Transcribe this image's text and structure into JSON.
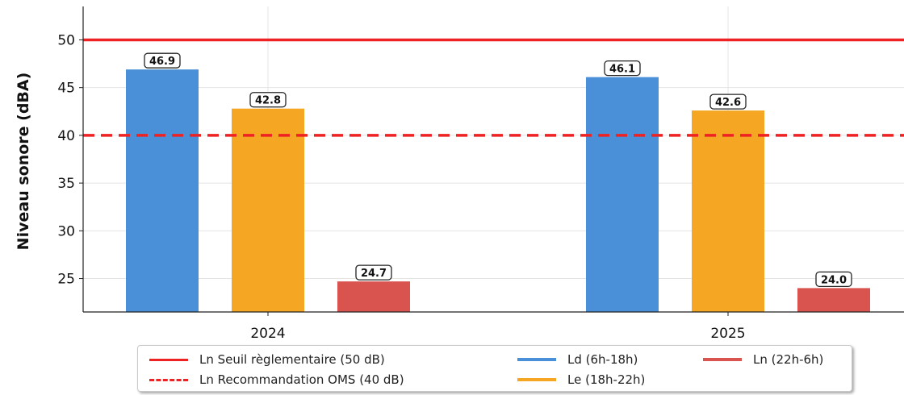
{
  "chart_data": {
    "type": "bar",
    "categories": [
      "2024",
      "2025"
    ],
    "series": [
      {
        "name": "Ld (6h-18h)",
        "values": [
          46.9,
          46.1
        ],
        "color": "#4a90d9"
      },
      {
        "name": "Le (18h-22h)",
        "values": [
          42.8,
          42.6
        ],
        "color": "#f5a623"
      },
      {
        "name": "Ln (22h-6h)",
        "values": [
          24.7,
          24.0
        ],
        "color": "#d9534f"
      }
    ],
    "data_labels": [
      [
        "46.9",
        "46.1"
      ],
      [
        "42.8",
        "42.6"
      ],
      [
        "24.7",
        "24.0"
      ]
    ],
    "reference_lines": [
      {
        "name": "Ln Seuil règlementaire (50 dB)",
        "value": 50,
        "style": "solid",
        "color": "#ee2222"
      },
      {
        "name": "Ln Recommandation OMS (40 dB)",
        "value": 40,
        "style": "dashed",
        "color": "#ee2222"
      }
    ],
    "ylabel": "Niveau sonore (dBA)",
    "xlabel": "",
    "yticks": [
      "25",
      "30",
      "35",
      "40",
      "45",
      "50"
    ],
    "ylim": [
      21.5,
      53.5
    ],
    "grid": true,
    "legend_position": "bottom"
  }
}
